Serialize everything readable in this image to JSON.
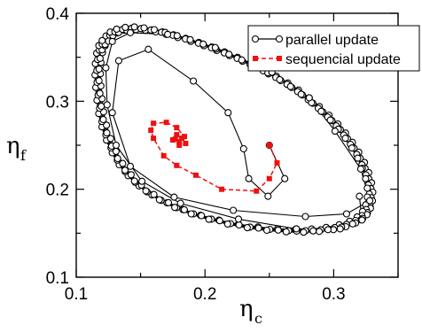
{
  "chart_data": {
    "type": "line",
    "title": "",
    "xlabel": "η",
    "xlabel_sub": "c",
    "ylabel": "η",
    "ylabel_sub": "f",
    "xlim": [
      0.1,
      0.35
    ],
    "ylim": [
      0.1,
      0.4
    ],
    "xticks": [
      0.1,
      0.2,
      0.3
    ],
    "xtick_labels": [
      "0.1",
      "0.2",
      "0.3"
    ],
    "yticks": [
      0.1,
      0.2,
      0.3,
      0.4
    ],
    "ytick_labels": [
      "0.1",
      "0.2",
      "0.3",
      "0.4"
    ],
    "legend_position": "top-right",
    "grid": false,
    "series": [
      {
        "name": "parallel update",
        "color": "#000000",
        "marker": "open-circle",
        "line": "solid",
        "trajectory": [
          [
            0.25,
            0.25
          ],
          [
            0.262,
            0.212
          ],
          [
            0.249,
            0.192
          ],
          [
            0.234,
            0.212
          ],
          [
            0.23,
            0.246
          ],
          [
            0.218,
            0.287
          ],
          [
            0.191,
            0.323
          ],
          [
            0.156,
            0.359
          ],
          [
            0.133,
            0.346
          ],
          [
            0.128,
            0.287
          ],
          [
            0.142,
            0.226
          ],
          [
            0.176,
            0.191
          ],
          [
            0.222,
            0.176
          ],
          [
            0.278,
            0.169
          ],
          [
            0.31,
            0.172
          ],
          [
            0.328,
            0.187
          ],
          [
            0.321,
            0.223
          ],
          [
            0.301,
            0.266
          ],
          [
            0.281,
            0.304
          ],
          [
            0.252,
            0.333
          ],
          [
            0.208,
            0.361
          ],
          [
            0.171,
            0.376
          ],
          [
            0.142,
            0.378
          ],
          [
            0.128,
            0.368
          ],
          [
            0.123,
            0.338
          ],
          [
            0.124,
            0.296
          ],
          [
            0.131,
            0.25
          ],
          [
            0.151,
            0.209
          ],
          [
            0.181,
            0.184
          ],
          [
            0.226,
            0.166
          ],
          [
            0.271,
            0.155
          ],
          [
            0.305,
            0.155
          ],
          [
            0.322,
            0.165
          ],
          [
            0.32,
            0.192
          ]
        ],
        "cycle": [
          [
            0.123,
            0.37
          ],
          [
            0.13,
            0.379
          ],
          [
            0.143,
            0.383
          ],
          [
            0.158,
            0.381
          ],
          [
            0.175,
            0.375
          ],
          [
            0.195,
            0.366
          ],
          [
            0.215,
            0.355
          ],
          [
            0.235,
            0.342
          ],
          [
            0.255,
            0.327
          ],
          [
            0.272,
            0.311
          ],
          [
            0.288,
            0.292
          ],
          [
            0.302,
            0.272
          ],
          [
            0.313,
            0.251
          ],
          [
            0.322,
            0.228
          ],
          [
            0.327,
            0.205
          ],
          [
            0.327,
            0.185
          ],
          [
            0.322,
            0.17
          ],
          [
            0.31,
            0.16
          ],
          [
            0.29,
            0.154
          ],
          [
            0.265,
            0.153
          ],
          [
            0.235,
            0.157
          ],
          [
            0.205,
            0.166
          ],
          [
            0.178,
            0.179
          ],
          [
            0.155,
            0.197
          ],
          [
            0.138,
            0.22
          ],
          [
            0.127,
            0.247
          ],
          [
            0.12,
            0.277
          ],
          [
            0.117,
            0.307
          ],
          [
            0.116,
            0.335
          ],
          [
            0.118,
            0.358
          ]
        ]
      },
      {
        "name": "sequencial update",
        "color": "#ee1111",
        "marker": "filled-square",
        "line": "dashed",
        "points": [
          [
            0.25,
            0.25
          ],
          [
            0.256,
            0.23
          ],
          [
            0.25,
            0.212
          ],
          [
            0.24,
            0.198
          ],
          [
            0.213,
            0.2
          ],
          [
            0.193,
            0.216
          ],
          [
            0.178,
            0.227
          ],
          [
            0.168,
            0.238
          ],
          [
            0.16,
            0.258
          ],
          [
            0.158,
            0.267
          ],
          [
            0.16,
            0.275
          ],
          [
            0.17,
            0.276
          ],
          [
            0.178,
            0.27
          ],
          [
            0.184,
            0.26
          ],
          [
            0.185,
            0.252
          ],
          [
            0.18,
            0.25
          ],
          [
            0.175,
            0.256
          ],
          [
            0.178,
            0.262
          ],
          [
            0.182,
            0.258
          ],
          [
            0.18,
            0.254
          ],
          [
            0.177,
            0.257
          ]
        ]
      }
    ]
  }
}
